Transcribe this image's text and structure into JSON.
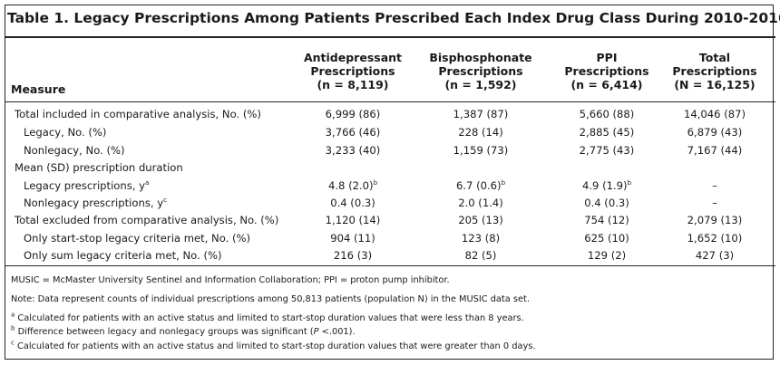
{
  "title": "Table 1. Legacy Prescriptions Among Patients Prescribed Each Index Drug Class During 2010-2016",
  "measure_header": "Measure",
  "columns": [
    {
      "line1": "Antidepressant",
      "line2": "Prescriptions",
      "line3": "(n = 8,119)"
    },
    {
      "line1": "Bisphosphonate",
      "line2": "Prescriptions",
      "line3": "(n = 1,592)"
    },
    {
      "line1": "PPI",
      "line2": "Prescriptions",
      "line3": "(n = 6,414)"
    },
    {
      "line1": "Total",
      "line2": "Prescriptions",
      "line3": "(N = 16,125)"
    }
  ],
  "rows": [
    {
      "label": "Total included in comparative analysis, No. (%)",
      "sup": "",
      "values": [
        "6,999 (86)",
        "1,387 (87)",
        "5,660 (88)",
        "14,046 (87)"
      ],
      "sups": [
        "",
        "",
        "",
        ""
      ]
    },
    {
      "label": "Legacy, No. (%)",
      "sup": "",
      "values": [
        "3,766 (46)",
        "228 (14)",
        "2,885 (45)",
        "6,879 (43)"
      ],
      "sups": [
        "",
        "",
        "",
        ""
      ]
    },
    {
      "label": "Nonlegacy, No. (%)",
      "sup": "",
      "values": [
        "3,233 (40)",
        "1,159 (73)",
        "2,775 (43)",
        "7,167 (44)"
      ],
      "sups": [
        "",
        "",
        "",
        ""
      ]
    },
    {
      "label": "Mean (SD) prescription duration",
      "sup": "",
      "values": [
        "",
        "",
        "",
        ""
      ],
      "sups": [
        "",
        "",
        "",
        ""
      ]
    },
    {
      "label": "Legacy prescriptions, y",
      "sup": "a",
      "values": [
        "4.8 (2.0)",
        "6.7 (0.6)",
        "4.9 (1.9)",
        "–"
      ],
      "sups": [
        "b",
        "b",
        "b",
        ""
      ]
    },
    {
      "label": "Nonlegacy prescriptions, y",
      "sup": "c",
      "values": [
        "0.4 (0.3)",
        "2.0 (1.4)",
        "0.4 (0.3)",
        "–"
      ],
      "sups": [
        "",
        "",
        "",
        ""
      ]
    },
    {
      "label": "Total excluded from comparative analysis, No. (%)",
      "sup": "",
      "values": [
        "1,120 (14)",
        "205 (13)",
        "754 (12)",
        "2,079 (13)"
      ],
      "sups": [
        "",
        "",
        "",
        ""
      ]
    },
    {
      "label": "Only start-stop legacy criteria met, No. (%)",
      "sup": "",
      "values": [
        "904 (11)",
        "123 (8)",
        "625 (10)",
        "1,652 (10)"
      ],
      "sups": [
        "",
        "",
        "",
        ""
      ]
    },
    {
      "label": "Only sum legacy criteria met, No. (%)",
      "sup": "",
      "values": [
        "216 (3)",
        "82 (5)",
        "129 (2)",
        "427 (3)"
      ],
      "sups": [
        "",
        "",
        "",
        ""
      ]
    }
  ],
  "notes": {
    "abbrev": "MUSIC = McMaster University Sentinel and Information Collaboration; PPI = proton pump inhibitor.",
    "note": "Note: Data represent counts of individual prescriptions among 50,813 patients (population N) in the MUSIC data set.",
    "fn_a_mark": "a",
    "fn_a": "Calculated for patients with an active status and limited to start-stop duration values that were less than 8 years.",
    "fn_b_mark": "b",
    "fn_b_pre": "Difference between legacy and nonlegacy groups was significant (",
    "fn_b_p": "P",
    "fn_b_post": " <.001).",
    "fn_c_mark": "c",
    "fn_c": "Calculated for patients with an active status and limited to start-stop duration values that were greater than 0 days."
  }
}
